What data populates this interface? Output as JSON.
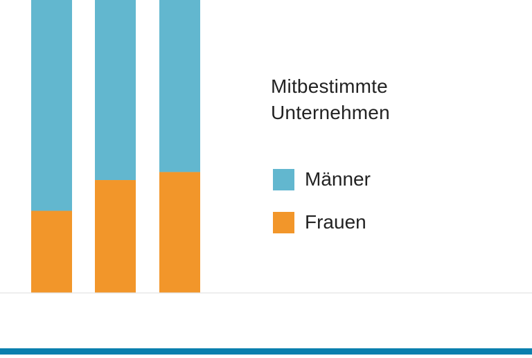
{
  "chart_data": {
    "type": "bar",
    "stacked": true,
    "title_lines": [
      "Mitbestimmte",
      "Unternehmen"
    ],
    "categories": [
      "",
      "",
      ""
    ],
    "series": [
      {
        "name": "Frauen",
        "values": [
          25.6,
          35.2,
          37.7
        ]
      },
      {
        "name": "Männer",
        "values": [
          74.4,
          64.8,
          62.3
        ]
      }
    ],
    "ylim": [
      0,
      100
    ],
    "legend_position": "right",
    "grid": false
  },
  "colors": {
    "maenner": "#62B7CF",
    "frauen": "#F2962A",
    "baseline": "#E3E3E3",
    "bottom_bar": "#0A7FAE",
    "text": "#222222"
  }
}
